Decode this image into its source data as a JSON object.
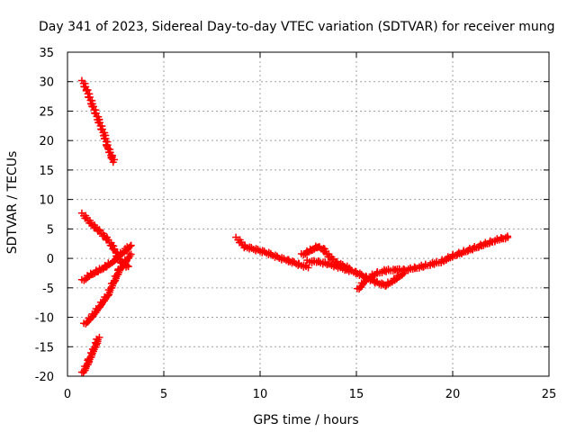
{
  "chart_data": {
    "type": "scatter",
    "title": "Day 341 of 2023, Sidereal Day-to-day VTEC variation (SDTVAR) for receiver mung",
    "xlabel": "GPS time / hours",
    "ylabel": "SDTVAR / TECUs",
    "xlim": [
      0,
      25
    ],
    "ylim": [
      -20,
      35
    ],
    "xticks": [
      0,
      5,
      10,
      15,
      20,
      25
    ],
    "yticks": [
      -20,
      -15,
      -10,
      -5,
      0,
      5,
      10,
      15,
      20,
      25,
      30,
      35
    ],
    "grid": true,
    "marker": "plus",
    "color": "#ff0000",
    "segments": [
      [
        [
          0.8,
          30.0
        ],
        [
          1.0,
          28.5
        ],
        [
          1.3,
          26.0
        ],
        [
          1.6,
          23.5
        ],
        [
          1.9,
          21.0
        ],
        [
          2.1,
          18.8
        ],
        [
          2.3,
          17.2
        ],
        [
          2.4,
          16.5
        ]
      ],
      [
        [
          0.8,
          7.5
        ],
        [
          1.2,
          6.0
        ],
        [
          1.6,
          4.8
        ],
        [
          2.0,
          3.5
        ],
        [
          2.3,
          2.2
        ],
        [
          2.5,
          1.2
        ],
        [
          2.6,
          0.2
        ],
        [
          2.8,
          -0.6
        ],
        [
          3.0,
          -1.2
        ],
        [
          3.2,
          -1.5
        ]
      ],
      [
        [
          0.8,
          -3.8
        ],
        [
          1.2,
          -2.8
        ],
        [
          1.6,
          -2.1
        ],
        [
          2.0,
          -1.4
        ],
        [
          2.4,
          -0.4
        ],
        [
          2.8,
          0.8
        ],
        [
          3.1,
          1.6
        ],
        [
          3.3,
          2.3
        ]
      ],
      [
        [
          0.9,
          -11.2
        ],
        [
          1.3,
          -9.8
        ],
        [
          1.7,
          -8.0
        ],
        [
          2.1,
          -6.2
        ],
        [
          2.4,
          -4.0
        ],
        [
          2.7,
          -2.0
        ],
        [
          3.0,
          -0.6
        ],
        [
          3.3,
          0.8
        ]
      ],
      [
        [
          0.8,
          -19.5
        ],
        [
          1.1,
          -17.5
        ],
        [
          1.3,
          -16.0
        ],
        [
          1.5,
          -14.5
        ],
        [
          1.6,
          -13.5
        ]
      ],
      [
        [
          8.8,
          3.4
        ],
        [
          9.2,
          2.0
        ],
        [
          9.8,
          1.5
        ],
        [
          10.4,
          0.9
        ],
        [
          11.0,
          0.1
        ],
        [
          11.5,
          -0.4
        ],
        [
          12.0,
          -1.0
        ],
        [
          12.5,
          -1.5
        ]
      ],
      [
        [
          12.2,
          0.6
        ],
        [
          12.6,
          1.3
        ],
        [
          13.0,
          2.0
        ],
        [
          13.3,
          1.5
        ],
        [
          13.6,
          0.3
        ],
        [
          14.0,
          -0.8
        ],
        [
          14.6,
          -1.6
        ]
      ],
      [
        [
          12.5,
          -0.5
        ],
        [
          13.0,
          -0.6
        ],
        [
          13.5,
          -0.9
        ],
        [
          14.0,
          -1.4
        ],
        [
          14.5,
          -1.9
        ],
        [
          15.0,
          -2.4
        ],
        [
          15.5,
          -3.2
        ],
        [
          16.0,
          -4.0
        ],
        [
          16.5,
          -4.6
        ],
        [
          17.0,
          -3.6
        ],
        [
          17.5,
          -2.4
        ]
      ],
      [
        [
          15.1,
          -5.3
        ],
        [
          15.5,
          -3.6
        ],
        [
          16.0,
          -2.6
        ],
        [
          16.5,
          -2.1
        ],
        [
          17.0,
          -1.9
        ],
        [
          17.5,
          -2.0
        ],
        [
          18.0,
          -1.7
        ],
        [
          18.5,
          -1.3
        ],
        [
          19.0,
          -0.9
        ],
        [
          19.5,
          -0.5
        ]
      ],
      [
        [
          19.5,
          -0.4
        ],
        [
          20.0,
          0.4
        ],
        [
          20.5,
          1.0
        ],
        [
          21.0,
          1.6
        ],
        [
          21.5,
          2.2
        ],
        [
          22.0,
          2.8
        ],
        [
          22.5,
          3.3
        ],
        [
          22.9,
          3.6
        ]
      ]
    ]
  }
}
